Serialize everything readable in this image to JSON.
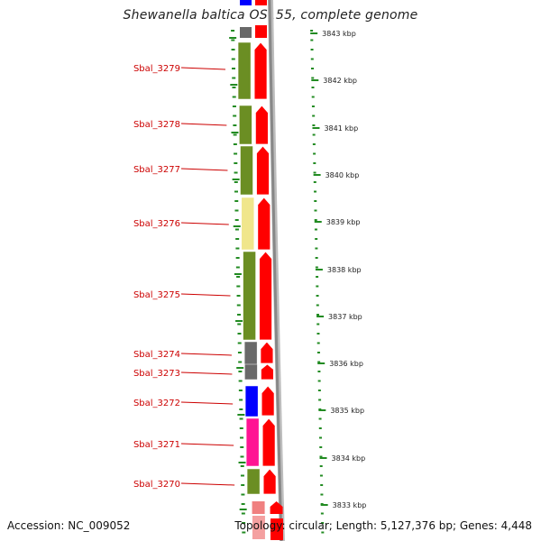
{
  "title": "Shewanella baltica OS155, complete genome",
  "footer": {
    "accession": "Accession: NC_009052",
    "summary": "Topology: circular; Length: 5,127,376 bp; Genes: 4,448"
  },
  "colors": {
    "gene_label": "#cc0000",
    "tick": "#228b22",
    "arrow": "#ff0000",
    "backbone": "#888888"
  },
  "genes": [
    {
      "label": "Sbal_3279",
      "category_color": "#6b8e23",
      "has_label": true
    },
    {
      "label": "Sbal_3278",
      "category_color": "#6b8e23",
      "has_label": true
    },
    {
      "label": "Sbal_3277",
      "category_color": "#6b8e23",
      "has_label": true
    },
    {
      "label": "Sbal_3276",
      "category_color": "#f0e68c",
      "has_label": true
    },
    {
      "label": "Sbal_3275",
      "category_color": "#6b8e23",
      "has_label": true
    },
    {
      "label": "Sbal_3274",
      "category_color": "#696969",
      "has_label": true
    },
    {
      "label": "Sbal_3273",
      "category_color": "#696969",
      "has_label": true
    },
    {
      "label": "Sbal_3272",
      "category_color": "#0000ff",
      "has_label": true
    },
    {
      "label": "Sbal_3271",
      "category_color": "#ff1493",
      "has_label": true
    },
    {
      "label": "Sbal_3270",
      "category_color": "#6b8e23",
      "has_label": true
    }
  ],
  "kbp_ticks": [
    "3843 kbp",
    "3842 kbp",
    "3841 kbp",
    "3840 kbp",
    "3839 kbp",
    "3838 kbp",
    "3837 kbp",
    "3836 kbp",
    "3835 kbp",
    "3834 kbp",
    "3833 kbp"
  ]
}
